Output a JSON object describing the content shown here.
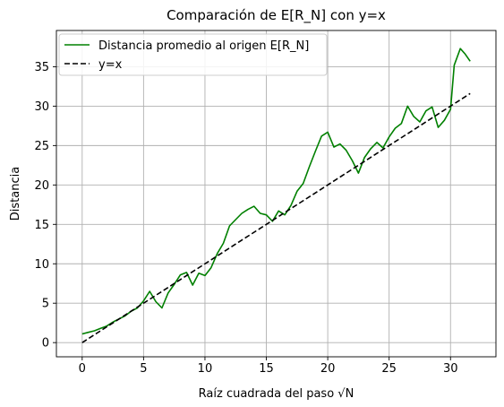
{
  "chart_data": {
    "type": "line",
    "title": "Comparación de E[R_N] con y=x",
    "xlabel": "Raíz cuadrada del paso √N",
    "ylabel": "Distancia",
    "xlim": [
      -2.1,
      33.7
    ],
    "ylim": [
      -1.8,
      39.6
    ],
    "xticks": [
      0,
      5,
      10,
      15,
      20,
      25,
      30
    ],
    "yticks": [
      0,
      5,
      10,
      15,
      20,
      25,
      30,
      35
    ],
    "grid": true,
    "legend_position": "top-left",
    "series": [
      {
        "name": "Distancia promedio al origen E[R_N]",
        "color": "#008000",
        "style": "solid",
        "x": [
          0,
          0.5,
          1,
          1.5,
          2,
          2.5,
          3,
          3.5,
          4,
          4.5,
          5,
          5.5,
          6,
          6.5,
          7,
          7.5,
          8,
          8.5,
          9,
          9.5,
          10,
          10.5,
          11,
          11.5,
          12,
          12.5,
          13,
          13.5,
          14,
          14.5,
          15,
          15.5,
          16,
          16.5,
          17,
          17.5,
          18,
          18.5,
          19,
          19.5,
          20,
          20.5,
          21,
          21.5,
          22,
          22.5,
          23,
          23.5,
          24,
          24.5,
          25,
          25.5,
          26,
          26.5,
          27,
          27.5,
          28,
          28.5,
          29,
          29.5,
          30,
          30.3,
          30.8,
          31.2,
          31.6
        ],
        "y": [
          1.1,
          1.3,
          1.5,
          1.8,
          2.1,
          2.6,
          3.0,
          3.4,
          4.0,
          4.4,
          5.3,
          6.5,
          5.2,
          4.4,
          6.3,
          7.4,
          8.6,
          8.9,
          7.3,
          8.8,
          8.5,
          9.5,
          11.3,
          12.6,
          14.8,
          15.6,
          16.4,
          16.9,
          17.3,
          16.4,
          16.2,
          15.4,
          16.7,
          16.2,
          17.4,
          19.2,
          20.2,
          22.3,
          24.3,
          26.2,
          26.7,
          24.8,
          25.2,
          24.4,
          23.1,
          21.5,
          23.5,
          24.6,
          25.4,
          24.7,
          26.1,
          27.2,
          27.8,
          30.0,
          28.7,
          28.0,
          29.4,
          29.9,
          27.3,
          28.2,
          29.6,
          35.2,
          37.3,
          36.6,
          35.7
        ]
      },
      {
        "name": "y=x",
        "color": "#000000",
        "style": "dashed",
        "x": [
          0,
          31.6
        ],
        "y": [
          0,
          31.6
        ]
      }
    ]
  }
}
